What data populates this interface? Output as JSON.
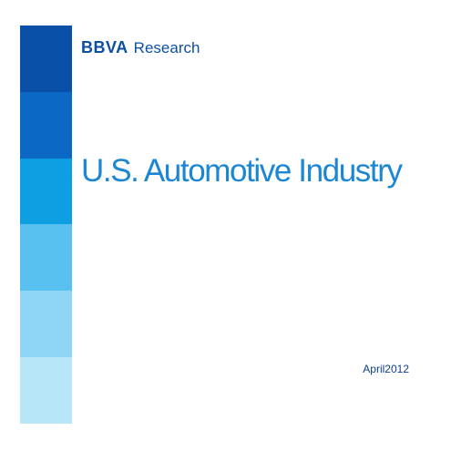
{
  "logo": {
    "brand": "BBVA",
    "unit": "Research"
  },
  "title": "U.S. Automotive Industry",
  "date": "April2012",
  "colors": {
    "bar_blocks": [
      "#0a4fa8",
      "#0b68c4",
      "#0e9fe3",
      "#59c1ef",
      "#8ed4f4",
      "#b7e6f9"
    ],
    "logo": "#0d4fa3",
    "title": "#1b86d4",
    "date": "#0d3f8f"
  }
}
